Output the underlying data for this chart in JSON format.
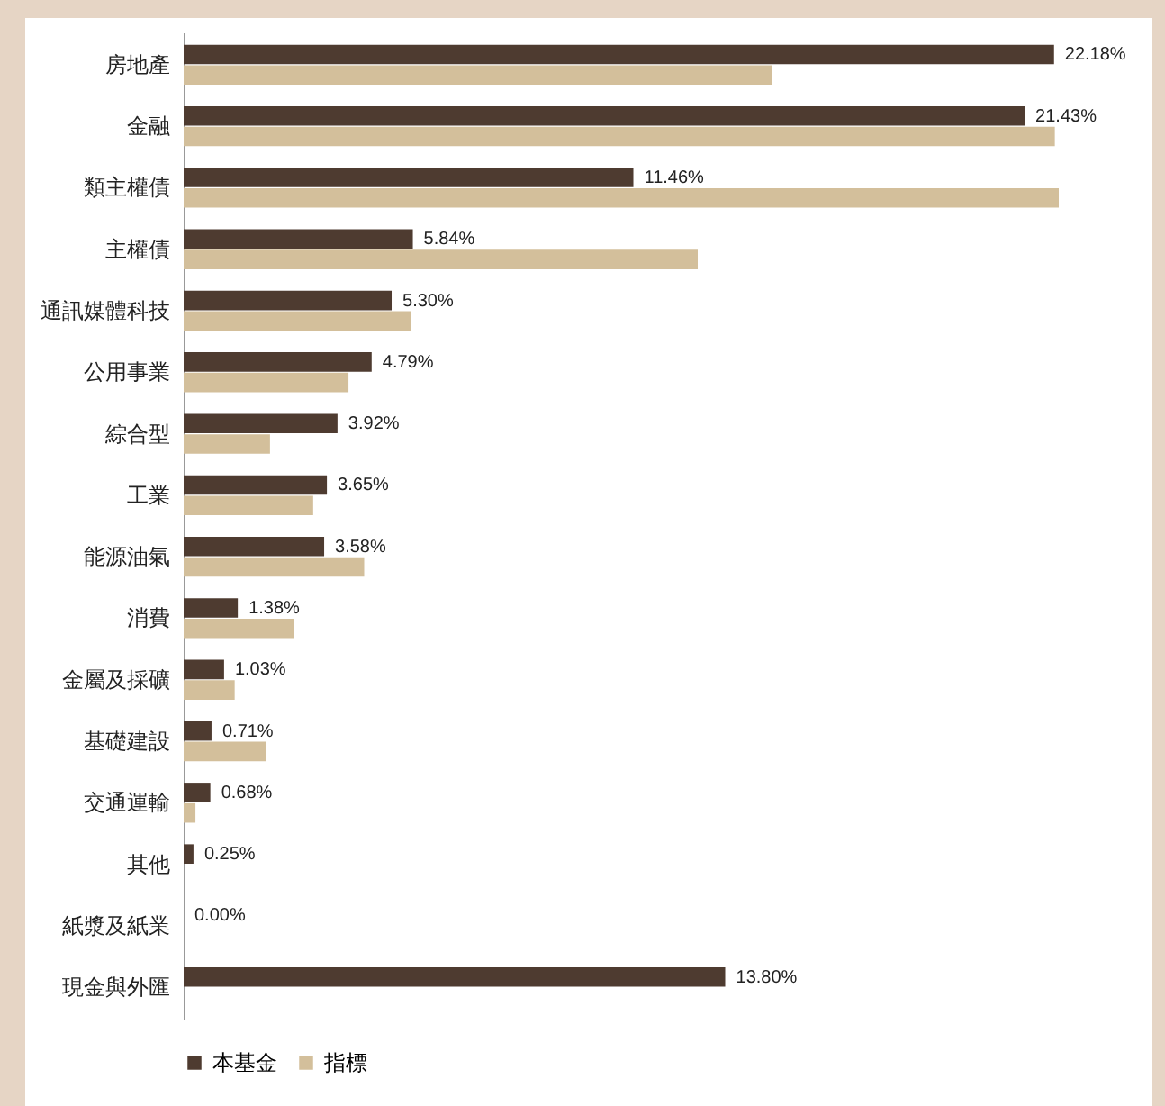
{
  "chart_data": {
    "type": "bar",
    "orientation": "horizontal",
    "legend": "bottom",
    "grid": false,
    "categories": [
      "房地產",
      "金融",
      "類主權債",
      "主權債",
      "通訊媒體科技",
      "公用事業",
      "綜合型",
      "工業",
      "能源油氣",
      "消費",
      "金屬及採礦",
      "基礎建設",
      "交通運輸",
      "其他",
      "紙漿及紙業",
      "現金與外匯"
    ],
    "series": [
      {
        "name": "本基金",
        "color": "#4e3b30",
        "values": [
          22.18,
          21.43,
          11.46,
          5.84,
          5.3,
          4.79,
          3.92,
          3.65,
          3.58,
          1.38,
          1.03,
          0.71,
          0.68,
          0.25,
          0.0,
          13.8
        ],
        "value_labels": [
          "22.18%",
          "21.43%",
          "11.46%",
          "5.84%",
          "5.30%",
          "4.79%",
          "3.92%",
          "3.65%",
          "3.58%",
          "1.38%",
          "1.03%",
          "0.71%",
          "0.68%",
          "0.25%",
          "0.00%",
          "13.80%"
        ]
      },
      {
        "name": "指標",
        "color": "#d3bf9b",
        "values": [
          15.0,
          22.2,
          22.3,
          13.1,
          5.8,
          4.2,
          2.2,
          3.3,
          4.6,
          2.8,
          1.3,
          2.1,
          0.3,
          null,
          null,
          null
        ]
      }
    ]
  }
}
